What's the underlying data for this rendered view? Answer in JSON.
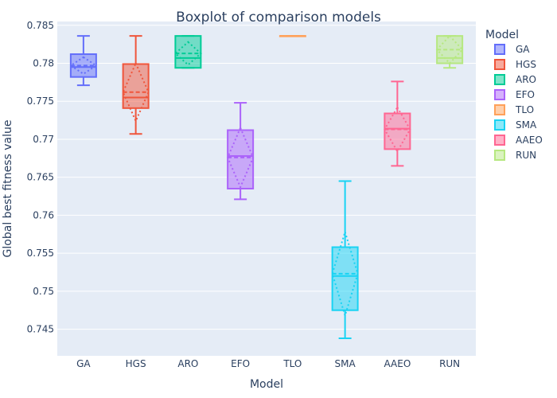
{
  "chart_data": {
    "type": "box",
    "title": "Boxplot of comparison models",
    "xlabel": "Model",
    "ylabel": "Global best fitness value",
    "ylim": [
      0.7415,
      0.7855
    ],
    "yticks": [
      0.745,
      0.75,
      0.755,
      0.76,
      0.765,
      0.77,
      0.775,
      0.78,
      0.785
    ],
    "ytick_labels": [
      "0.745",
      "0.75",
      "0.755",
      "0.76",
      "0.765",
      "0.77",
      "0.775",
      "0.78",
      "0.785"
    ],
    "categories": [
      "GA",
      "HGS",
      "ARO",
      "EFO",
      "TLO",
      "SMA",
      "AAEO",
      "RUN"
    ],
    "legend": {
      "title": "Model",
      "placement": "right"
    },
    "grid": true,
    "background": "#e5ecf6",
    "box_style": "box with mean (dashed) and standard deviation diamond (dotted)",
    "series": [
      {
        "name": "GA",
        "color": "#636efa",
        "min": 0.7771,
        "q1": 0.7782,
        "median": 0.7795,
        "q3": 0.7812,
        "max": 0.7836,
        "mean": 0.7797,
        "sd": 0.0011
      },
      {
        "name": "HGS",
        "color": "#ef553b",
        "min": 0.7707,
        "q1": 0.7741,
        "median": 0.7755,
        "q3": 0.7799,
        "max": 0.7836,
        "mean": 0.7762,
        "sd": 0.0038
      },
      {
        "name": "ARO",
        "color": "#00cc96",
        "min": 0.7794,
        "q1": 0.7794,
        "median": 0.7807,
        "q3": 0.7836,
        "max": 0.7836,
        "mean": 0.7813,
        "sd": 0.0015
      },
      {
        "name": "EFO",
        "color": "#ab63fa",
        "min": 0.7621,
        "q1": 0.7635,
        "median": 0.7678,
        "q3": 0.7712,
        "max": 0.7748,
        "mean": 0.7676,
        "sd": 0.0039
      },
      {
        "name": "TLO",
        "color": "#ffa15a",
        "min": 0.7836,
        "q1": 0.7836,
        "median": 0.7836,
        "q3": 0.7836,
        "max": 0.7836,
        "mean": 0.7836,
        "sd": 0
      },
      {
        "name": "SMA",
        "color": "#19d3f3",
        "min": 0.7438,
        "q1": 0.7475,
        "median": 0.752,
        "q3": 0.7558,
        "max": 0.7645,
        "mean": 0.7523,
        "sd": 0.0055
      },
      {
        "name": "AAEO",
        "color": "#ff6692",
        "min": 0.7665,
        "q1": 0.7687,
        "median": 0.7714,
        "q3": 0.7734,
        "max": 0.7776,
        "mean": 0.7713,
        "sd": 0.0029
      },
      {
        "name": "RUN",
        "color": "#b6e880",
        "min": 0.7794,
        "q1": 0.78,
        "median": 0.7807,
        "q3": 0.7836,
        "max": 0.7836,
        "mean": 0.7818,
        "sd": 0.0018
      }
    ]
  }
}
